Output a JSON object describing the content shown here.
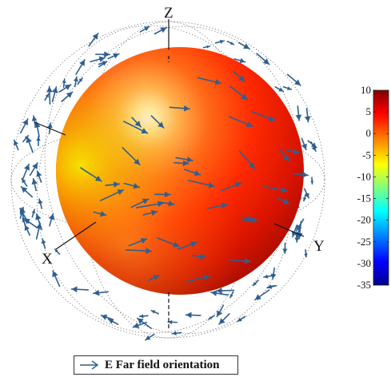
{
  "chart_data": {
    "type": "3d-radiation-pattern",
    "title": "",
    "axes": {
      "z": "Z",
      "y": "Y",
      "x": "X"
    },
    "colorbar": {
      "ticks": [
        10,
        5,
        0,
        -5,
        -10,
        -15,
        -20,
        -25,
        -30,
        -35
      ],
      "range": [
        -35,
        10
      ],
      "colormap": "jet"
    },
    "legend": {
      "position": "bottom-center",
      "entries": [
        {
          "name": "E Far field orientation",
          "color": "#2e5f8f"
        }
      ]
    },
    "colors": {
      "sphere_highlight": "#ffffff",
      "sphere_warm": "#ff3b00",
      "sphere_deep": "#b80e00",
      "sphere_yellow": "#f2e800",
      "arrow": "#2e5f8f"
    }
  }
}
